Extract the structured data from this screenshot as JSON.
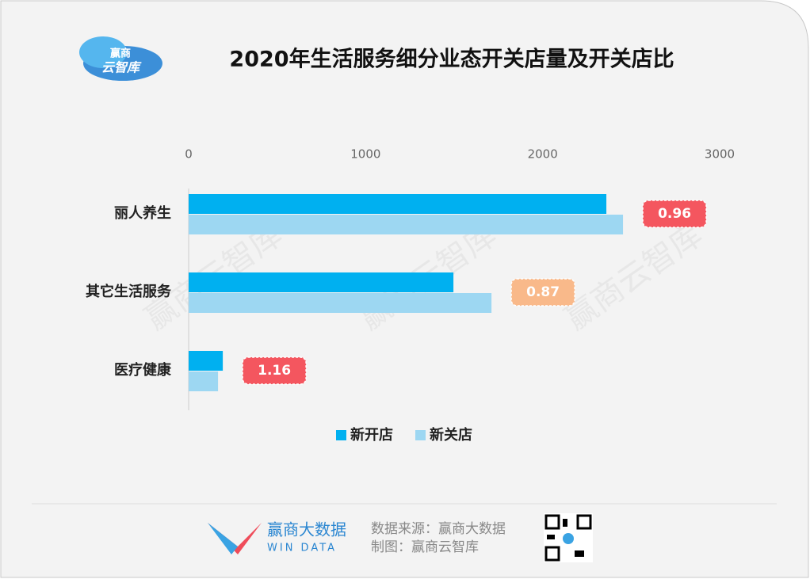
{
  "header": {
    "logo_line1": "赢商",
    "logo_line2": "云智库"
  },
  "watermark": "赢商云智库",
  "chart_data": {
    "type": "hbar",
    "title": "2020年生活服务细分业态开关店量及开关店比",
    "categories": [
      "丽人养生",
      "其它生活服务",
      "医疗健康"
    ],
    "series": [
      {
        "name": "新开店",
        "color": "#00b0f0",
        "values": [
          2360,
          1496,
          193
        ]
      },
      {
        "name": "新关店",
        "color": "#9dd7f2",
        "values": [
          2454,
          1711,
          166
        ]
      }
    ],
    "ratios": [
      0.96,
      0.87,
      1.16
    ],
    "ratio_colors": [
      "#f4565f",
      "#f9b98a",
      "#f4565f"
    ],
    "xlim": [
      0,
      3000
    ],
    "xticks": [
      0,
      1000,
      2000,
      3000
    ]
  },
  "footer": {
    "brand": "赢商大数据",
    "brand_en": "WIN DATA",
    "source": "数据来源：赢商大数据",
    "credit": "制图：赢商云智库"
  }
}
